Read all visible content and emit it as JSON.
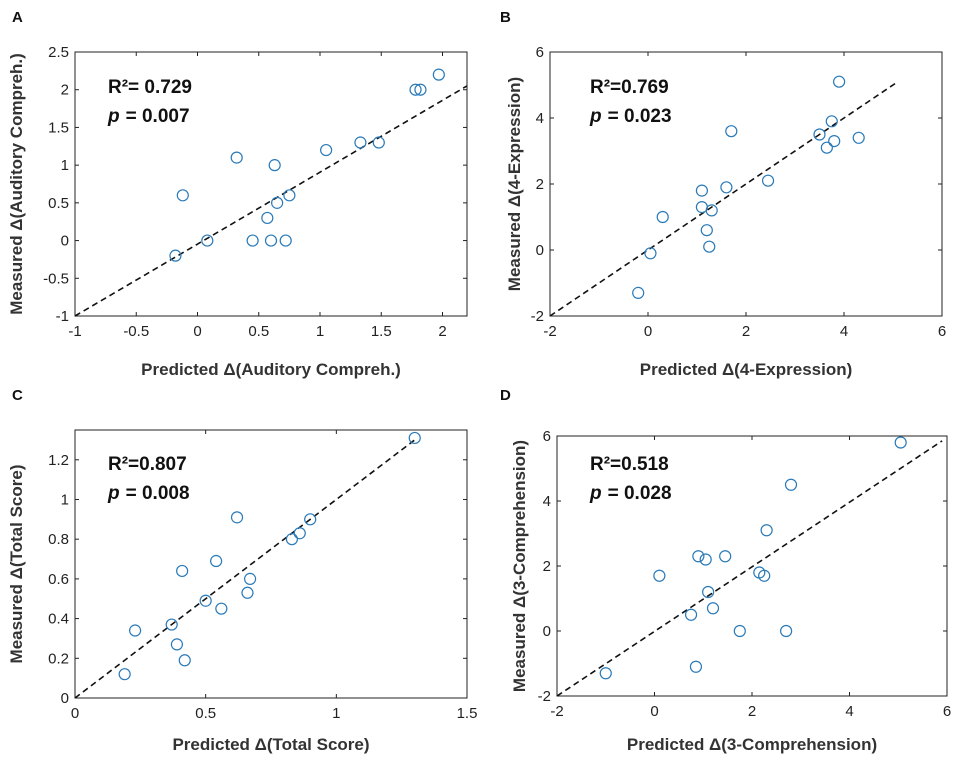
{
  "chart_data": [
    {
      "id": "A",
      "type": "scatter",
      "panel_label": "A",
      "xlabel": "Predicted Δ(Auditory Compreh.)",
      "ylabel": "Measured Δ(Auditory Compreh.)",
      "xlim": [
        -1,
        2.2
      ],
      "ylim": [
        -1,
        2.5
      ],
      "xticks": [
        -1,
        -0.5,
        0,
        0.5,
        1,
        1.5,
        2
      ],
      "xtick_labels": [
        "-1",
        "-0.5",
        "0",
        "0.5",
        "1",
        "1.5",
        "2"
      ],
      "yticks": [
        -1,
        -0.5,
        0,
        0.5,
        1,
        1.5,
        2,
        2.5
      ],
      "ytick_labels": [
        "-1",
        "-0.5",
        "0",
        "0.5",
        "1",
        "1.5",
        "2",
        "2.5"
      ],
      "r2_text": "R²= 0.729",
      "p_label": "p",
      "p_value": "= 0.007",
      "fit_line": [
        [
          -1,
          -1
        ],
        [
          2.2,
          2.05
        ]
      ],
      "points": [
        [
          -0.18,
          -0.2
        ],
        [
          -0.12,
          0.6
        ],
        [
          0.08,
          0.0
        ],
        [
          0.32,
          1.1
        ],
        [
          0.45,
          0.0
        ],
        [
          0.57,
          0.3
        ],
        [
          0.6,
          0.0
        ],
        [
          0.63,
          1.0
        ],
        [
          0.65,
          0.5
        ],
        [
          0.72,
          0.0
        ],
        [
          0.75,
          0.6
        ],
        [
          1.05,
          1.2
        ],
        [
          1.33,
          1.3
        ],
        [
          1.48,
          1.3
        ],
        [
          1.78,
          2.0
        ],
        [
          1.82,
          2.0
        ],
        [
          1.97,
          2.2
        ]
      ]
    },
    {
      "id": "B",
      "type": "scatter",
      "panel_label": "B",
      "xlabel": "Predicted Δ(4-Expression)",
      "ylabel": "Measured Δ(4-Expression)",
      "xlim": [
        -2,
        6
      ],
      "ylim": [
        -2,
        6
      ],
      "xticks": [
        -2,
        0,
        2,
        4,
        6
      ],
      "xtick_labels": [
        "-2",
        "0",
        "2",
        "4",
        "6"
      ],
      "yticks": [
        -2,
        0,
        2,
        4,
        6
      ],
      "ytick_labels": [
        "-2",
        "0",
        "2",
        "4",
        "6"
      ],
      "r2_text": "R²=0.769",
      "p_label": "p",
      "p_value": "= 0.023",
      "fit_line": [
        [
          -2,
          -2
        ],
        [
          5.1,
          5.1
        ]
      ],
      "points": [
        [
          -0.2,
          -1.3
        ],
        [
          0.05,
          -0.1
        ],
        [
          0.3,
          1.0
        ],
        [
          1.1,
          1.8
        ],
        [
          1.1,
          1.3
        ],
        [
          1.2,
          0.6
        ],
        [
          1.25,
          0.1
        ],
        [
          1.3,
          1.2
        ],
        [
          1.6,
          1.9
        ],
        [
          1.7,
          3.6
        ],
        [
          2.45,
          2.1
        ],
        [
          3.5,
          3.5
        ],
        [
          3.65,
          3.1
        ],
        [
          3.75,
          3.9
        ],
        [
          3.8,
          3.3
        ],
        [
          3.9,
          5.1
        ],
        [
          4.3,
          3.4
        ]
      ]
    },
    {
      "id": "C",
      "type": "scatter",
      "panel_label": "C",
      "xlabel": "Predicted Δ(Total Score)",
      "ylabel": "Measured Δ(Total Score)",
      "xlim": [
        0,
        1.5
      ],
      "ylim": [
        0,
        1.35
      ],
      "xticks": [
        0,
        0.5,
        1,
        1.5
      ],
      "xtick_labels": [
        "0",
        "0.5",
        "1",
        "1.5"
      ],
      "yticks": [
        0,
        0.2,
        0.4,
        0.6,
        0.8,
        1,
        1.2
      ],
      "ytick_labels": [
        "0",
        "0.2",
        "0.4",
        "0.6",
        "0.8",
        "1",
        "1.2"
      ],
      "r2_text": "R²=0.807",
      "p_label": "p",
      "p_value": "= 0.008",
      "fit_line": [
        [
          0,
          0
        ],
        [
          1.3,
          1.3
        ]
      ],
      "points": [
        [
          0.19,
          0.12
        ],
        [
          0.23,
          0.34
        ],
        [
          0.37,
          0.37
        ],
        [
          0.39,
          0.27
        ],
        [
          0.41,
          0.64
        ],
        [
          0.42,
          0.19
        ],
        [
          0.5,
          0.49
        ],
        [
          0.54,
          0.69
        ],
        [
          0.56,
          0.45
        ],
        [
          0.62,
          0.91
        ],
        [
          0.66,
          0.53
        ],
        [
          0.67,
          0.6
        ],
        [
          0.83,
          0.8
        ],
        [
          0.86,
          0.83
        ],
        [
          0.9,
          0.9
        ],
        [
          1.3,
          1.31
        ]
      ]
    },
    {
      "id": "D",
      "type": "scatter",
      "panel_label": "D",
      "xlabel": "Predicted Δ(3-Comprehension)",
      "ylabel": "Measured Δ(3-Comprehension)",
      "xlim": [
        -2,
        6
      ],
      "ylim": [
        -2,
        6
      ],
      "xticks": [
        -2,
        0,
        2,
        4,
        6
      ],
      "xtick_labels": [
        "-2",
        "0",
        "2",
        "4",
        "6"
      ],
      "yticks": [
        -2,
        0,
        2,
        4,
        6
      ],
      "ytick_labels": [
        "-2",
        "0",
        "2",
        "4",
        "6"
      ],
      "r2_text": "R²=0.518",
      "p_label": "p",
      "p_value": "= 0.028",
      "fit_line": [
        [
          -2,
          -2
        ],
        [
          5.9,
          5.85
        ]
      ],
      "points": [
        [
          -1.0,
          -1.3
        ],
        [
          0.1,
          1.7
        ],
        [
          0.75,
          0.5
        ],
        [
          0.85,
          -1.1
        ],
        [
          0.9,
          2.3
        ],
        [
          1.05,
          2.2
        ],
        [
          1.1,
          1.2
        ],
        [
          1.2,
          0.7
        ],
        [
          1.45,
          2.3
        ],
        [
          1.75,
          0.0
        ],
        [
          2.15,
          1.8
        ],
        [
          2.25,
          1.7
        ],
        [
          2.3,
          3.1
        ],
        [
          2.7,
          0.0
        ],
        [
          2.8,
          4.5
        ],
        [
          5.05,
          5.8
        ]
      ]
    }
  ]
}
